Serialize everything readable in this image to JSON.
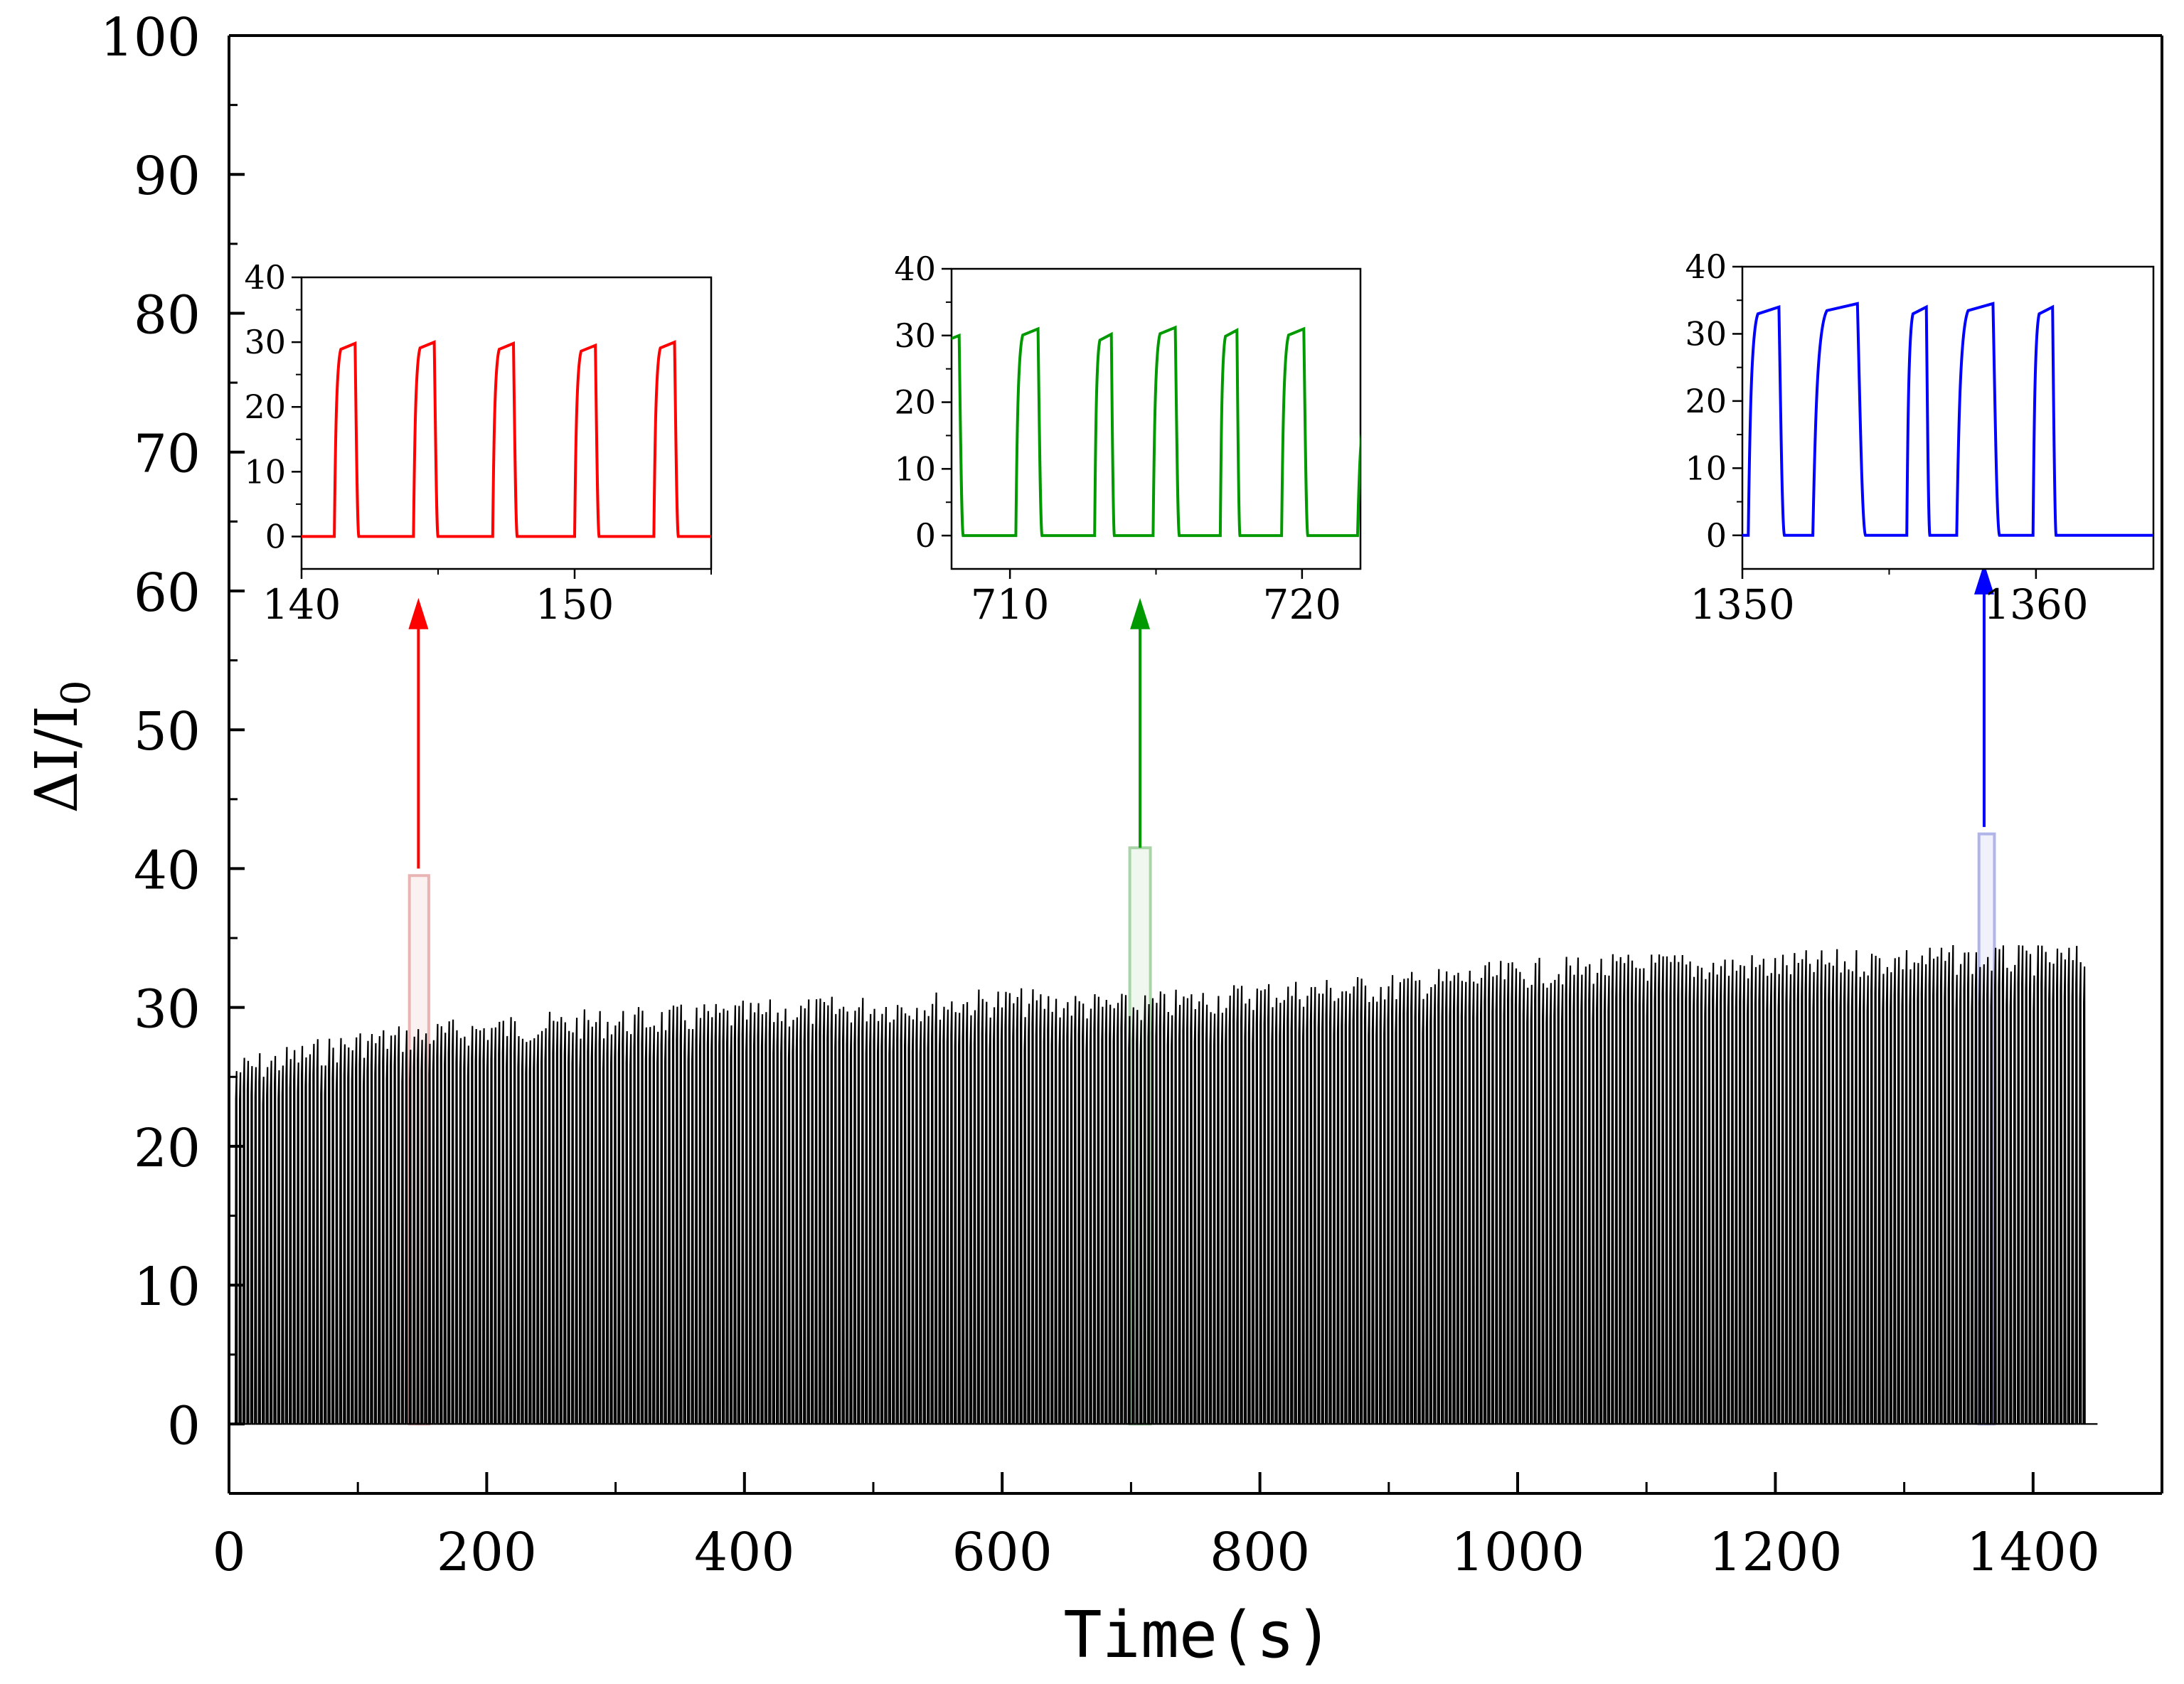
{
  "chart_data": {
    "type": "line",
    "xlabel": "Time(s)",
    "ylabel_main": "ΔI/I",
    "ylabel_sub": "0",
    "xlim": [
      0,
      1500
    ],
    "ylim": [
      -5,
      100
    ],
    "xticks": [
      0,
      200,
      400,
      600,
      800,
      1000,
      1200,
      1400
    ],
    "xtick_labels": [
      "0",
      "200",
      "400",
      "600",
      "800",
      "1000",
      "1200",
      "1400"
    ],
    "yticks": [
      0,
      10,
      20,
      30,
      40,
      50,
      60,
      70,
      80,
      90,
      100
    ],
    "ytick_labels": [
      "0",
      "10",
      "20",
      "30",
      "40",
      "50",
      "60",
      "70",
      "80",
      "90",
      "100"
    ],
    "grid": false,
    "series": [
      {
        "color": "#000000",
        "cycle_period_s": 3,
        "t_start": 5,
        "t_end": 1440,
        "peak_envelope": {
          "t": [
            5,
            100,
            200,
            300,
            400,
            500,
            600,
            700,
            800,
            900,
            1000,
            1100,
            1200,
            1300,
            1440
          ],
          "peak": [
            26.5,
            28.5,
            29.5,
            30,
            30.5,
            31,
            31.5,
            31,
            32,
            32.5,
            33.5,
            34,
            34,
            34.5,
            34.5
          ]
        }
      }
    ],
    "highlights": [
      {
        "x0": 140,
        "x1": 155,
        "y0": 0,
        "y1": 39.5,
        "color": "#e8b4b4"
      },
      {
        "x0": 699,
        "x1": 715,
        "y0": 0,
        "y1": 41.5,
        "color": "#a8d4a8"
      },
      {
        "x0": 1358,
        "x1": 1370,
        "y0": 0,
        "y1": 42.5,
        "color": "#b0b4e8"
      }
    ],
    "insets": [
      {
        "color": "#ff0000",
        "xlim": [
          140,
          155
        ],
        "ylim": [
          -5,
          40
        ],
        "xticks": [
          140,
          150
        ],
        "xtick_labels": [
          "140",
          "150"
        ],
        "yticks": [
          0,
          10,
          20,
          30,
          40
        ],
        "ytick_labels": [
          "0",
          "10",
          "20",
          "30",
          "40"
        ],
        "pulses": [
          {
            "start": 141.2,
            "end": 142.0,
            "peak": 29.8
          },
          {
            "start": 144.1,
            "end": 144.9,
            "peak": 30.0
          },
          {
            "start": 147.0,
            "end": 147.8,
            "peak": 29.8
          },
          {
            "start": 150.0,
            "end": 150.8,
            "peak": 29.5
          },
          {
            "start": 152.9,
            "end": 153.7,
            "peak": 30.0
          }
        ]
      },
      {
        "color": "#009900",
        "xlim": [
          708,
          722
        ],
        "ylim": [
          -5,
          40
        ],
        "xticks": [
          710,
          720
        ],
        "xtick_labels": [
          "710",
          "720"
        ],
        "yticks": [
          0,
          10,
          20,
          30,
          40
        ],
        "ytick_labels": [
          "0",
          "10",
          "20",
          "30",
          "40"
        ],
        "pulses": [
          {
            "start": 707.5,
            "end": 708.3,
            "peak": 30.0
          },
          {
            "start": 710.2,
            "end": 711.0,
            "peak": 31.0
          },
          {
            "start": 712.9,
            "end": 713.5,
            "peak": 30.2
          },
          {
            "start": 714.9,
            "end": 715.7,
            "peak": 31.2
          },
          {
            "start": 717.2,
            "end": 717.8,
            "peak": 30.8
          },
          {
            "start": 719.3,
            "end": 720.1,
            "peak": 31.0
          },
          {
            "start": 721.9,
            "end": 723.0,
            "peak": 20.0
          }
        ]
      },
      {
        "color": "#0000ff",
        "xlim": [
          1350,
          1364
        ],
        "ylim": [
          -5,
          40
        ],
        "xticks": [
          1350,
          1360
        ],
        "xtick_labels": [
          "1350",
          "1360"
        ],
        "yticks": [
          0,
          10,
          20,
          30,
          40
        ],
        "ytick_labels": [
          "0",
          "10",
          "20",
          "30",
          "40"
        ],
        "pulses": [
          {
            "start": 1350.2,
            "end": 1351.3,
            "peak": 34.0
          },
          {
            "start": 1352.4,
            "end": 1354.0,
            "peak": 34.5
          },
          {
            "start": 1355.6,
            "end": 1356.3,
            "peak": 34.0
          },
          {
            "start": 1357.3,
            "end": 1358.6,
            "peak": 34.5
          },
          {
            "start": 1359.9,
            "end": 1360.6,
            "peak": 34.0
          }
        ]
      }
    ]
  }
}
